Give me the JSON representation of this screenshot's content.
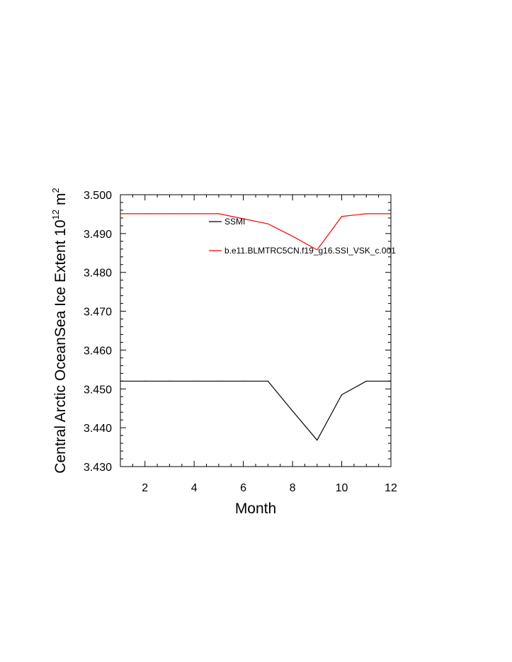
{
  "chart_data": {
    "type": "line",
    "title": "",
    "xlabel": "Month",
    "ylabel_main": "Central Arctic OceanSea Ice Extent 10",
    "ylabel_exp": "12",
    "ylabel_unit": " m",
    "ylabel_unit_exp": "2",
    "xlim": [
      1,
      12
    ],
    "ylim": [
      3.43,
      3.5
    ],
    "xticks": [
      2,
      4,
      6,
      8,
      10,
      12
    ],
    "yticks": [
      3.43,
      3.44,
      3.45,
      3.46,
      3.47,
      3.48,
      3.49,
      3.5
    ],
    "ytick_labels": [
      "3.430",
      "3.440",
      "3.450",
      "3.460",
      "3.470",
      "3.480",
      "3.490",
      "3.500"
    ],
    "grid": false,
    "legend_position": "top-right inside",
    "x": [
      1,
      2,
      3,
      4,
      5,
      6,
      7,
      8,
      9,
      10,
      11,
      12
    ],
    "series": [
      {
        "name": "SSMI",
        "color": "#000000",
        "values": [
          3.452,
          3.452,
          3.452,
          3.452,
          3.452,
          3.452,
          3.452,
          3.4443,
          3.4368,
          3.4485,
          3.452,
          3.452
        ]
      },
      {
        "name": "b.e11.BLMTRC5CN.f19_g16.SSI_VSK_c.001",
        "color": "#ff0000",
        "values": [
          3.4951,
          3.4951,
          3.4951,
          3.4951,
          3.4951,
          3.4938,
          3.4925,
          3.4893,
          3.4858,
          3.4944,
          3.4951,
          3.4951
        ]
      }
    ]
  }
}
